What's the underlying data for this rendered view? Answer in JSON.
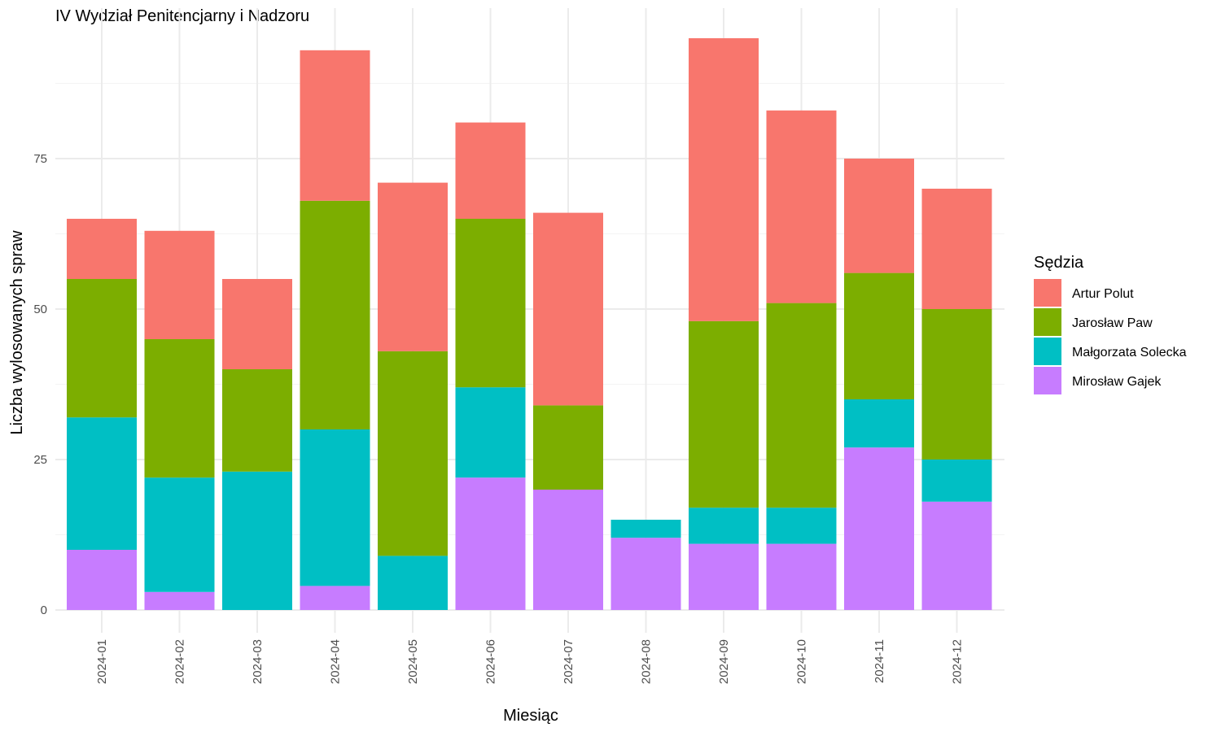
{
  "chart_data": {
    "type": "bar",
    "stacked": true,
    "title": "IV Wydział Penitencjarny i Nadzoru",
    "xlabel": "Miesiąc",
    "ylabel": "Liczba wylosowanych spraw",
    "ylim": [
      0,
      100
    ],
    "yticks": [
      0,
      25,
      50,
      75
    ],
    "grid": true,
    "legend_position": "right",
    "legend_title": "Sędzia",
    "categories": [
      "2024-01",
      "2024-02",
      "2024-03",
      "2024-04",
      "2024-05",
      "2024-06",
      "2024-07",
      "2024-08",
      "2024-09",
      "2024-10",
      "2024-11",
      "2024-12"
    ],
    "series": [
      {
        "name": "Mirosław Gajek",
        "color": "#C77CFF",
        "values": [
          10,
          3,
          0,
          4,
          0,
          22,
          20,
          12,
          11,
          11,
          27,
          18
        ]
      },
      {
        "name": "Małgorzata Solecka",
        "color": "#00BFC4",
        "values": [
          22,
          19,
          23,
          26,
          9,
          15,
          0,
          3,
          6,
          6,
          8,
          7
        ]
      },
      {
        "name": "Jarosław Paw",
        "color": "#7CAE00",
        "values": [
          23,
          23,
          17,
          38,
          34,
          28,
          14,
          0,
          31,
          34,
          21,
          25
        ]
      },
      {
        "name": "Artur Polut",
        "color": "#F8766D",
        "values": [
          10,
          18,
          15,
          25,
          28,
          16,
          32,
          0,
          47,
          32,
          19,
          20
        ]
      }
    ],
    "legend_order": [
      "Artur Polut",
      "Jarosław Paw",
      "Małgorzata Solecka",
      "Mirosław Gajek"
    ]
  }
}
